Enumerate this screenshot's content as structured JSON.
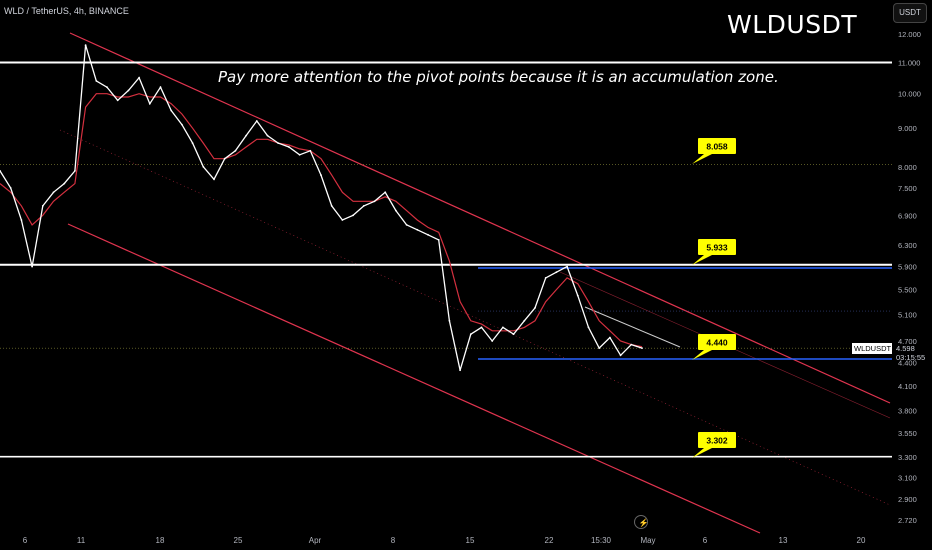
{
  "header": {
    "symbol_line": "WLD / TetherUS, 4h, BINANCE",
    "big_title": "WLDUSDT",
    "annotation": "Pay more attention to the pivot points because it is an accumulation zone.",
    "currency": "USDT"
  },
  "price_badge": {
    "symbol": "WLDUSDT",
    "price": "4.598",
    "countdown": "03:15:55"
  },
  "chart_data": {
    "type": "line",
    "xlabel": "",
    "ylabel": "",
    "y_scale": "log",
    "ylim": [
      2.6,
      12.6
    ],
    "yticks": [
      "12.000",
      "11.000",
      "10.000",
      "9.000",
      "8.000",
      "7.500",
      "6.900",
      "6.300",
      "5.900",
      "5.500",
      "5.100",
      "4.700",
      "4.400",
      "4.100",
      "3.800",
      "3.550",
      "3.300",
      "3.100",
      "2.900",
      "2.720"
    ],
    "xticks": [
      "6",
      "11",
      "18",
      "25",
      "Apr",
      "8",
      "15",
      "22",
      "15:30",
      "May",
      "6",
      "13",
      "20"
    ],
    "series": [
      {
        "values": [
          7.9,
          7.5,
          6.8,
          5.9,
          7.1,
          7.4,
          7.6,
          7.9,
          11.6,
          10.4,
          10.2,
          9.8,
          10.1,
          10.5,
          9.7,
          10.2,
          9.5,
          9.1,
          8.6,
          8.0,
          7.7,
          8.2,
          8.4,
          8.8,
          9.2,
          8.8,
          8.6,
          8.5,
          8.3,
          8.4,
          7.8,
          7.1,
          6.8,
          6.9,
          7.1,
          7.2,
          7.4,
          7.0,
          6.7,
          6.6,
          6.5,
          6.4,
          5.0,
          4.3,
          4.8,
          4.9,
          4.7,
          4.9,
          4.8,
          5.0,
          5.2,
          5.7,
          5.8,
          5.9,
          5.4,
          4.9,
          4.6,
          4.75,
          4.5,
          4.65,
          4.6
        ]
      },
      {
        "values": [
          7.6,
          7.4,
          7.1,
          6.7,
          6.9,
          7.2,
          7.4,
          7.6,
          9.6,
          10.0,
          10.0,
          9.9,
          9.9,
          10.0,
          9.9,
          9.9,
          9.7,
          9.4,
          9.0,
          8.6,
          8.2,
          8.2,
          8.3,
          8.5,
          8.7,
          8.7,
          8.6,
          8.55,
          8.45,
          8.4,
          8.2,
          7.8,
          7.4,
          7.2,
          7.2,
          7.2,
          7.3,
          7.2,
          7.0,
          6.8,
          6.65,
          6.55,
          6.0,
          5.3,
          5.0,
          4.95,
          4.85,
          4.85,
          4.85,
          4.9,
          5.0,
          5.3,
          5.5,
          5.7,
          5.6,
          5.3,
          5.0,
          4.85,
          4.7,
          4.65,
          4.62
        ]
      }
    ],
    "levels": [
      {
        "label": "11.000",
        "value": 11.0
      },
      {
        "label": "5.933",
        "value": 5.933
      },
      {
        "label": "4.440",
        "value": 4.44
      },
      {
        "label": "3.302",
        "value": 3.302
      }
    ],
    "callouts": [
      "8.058",
      "5.933",
      "4.440",
      "3.302"
    ],
    "colors": {
      "background": "#000000",
      "channel": "#e0344f",
      "level": "#ffffff",
      "support": "#2962ff",
      "callout": "#ffff00",
      "ema": "#d4303f",
      "candles": "#ffffff"
    }
  }
}
